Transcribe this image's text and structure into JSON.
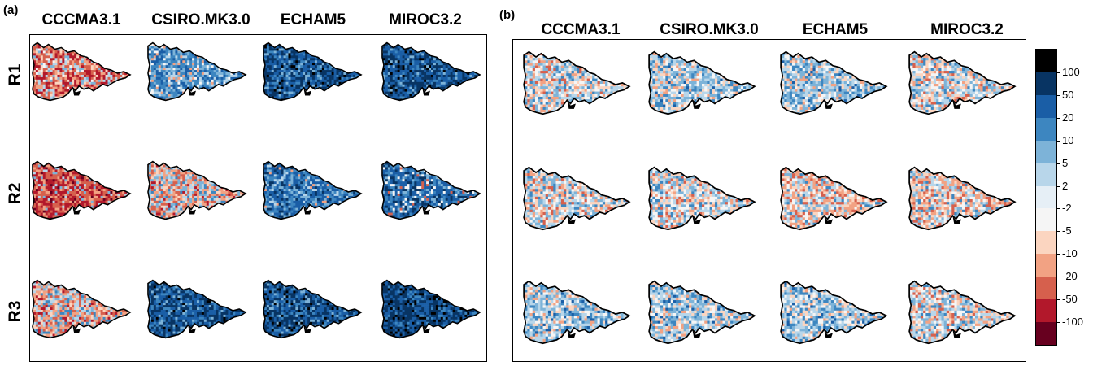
{
  "panels": [
    {
      "letter": "(a)",
      "columns": [
        "CCCMA3.1",
        "CSIRO.MK3.0",
        "ECHAM5",
        "MIROC3.2"
      ],
      "rows": [
        "R1",
        "R2",
        "R3"
      ],
      "maps": [
        [
          "pos_red",
          "pos_blue",
          "dark_blue",
          "dark_blue"
        ],
        [
          "strong_red",
          "mixed_red",
          "blue",
          "blue_mixed"
        ],
        [
          "mixed_red",
          "dark_blue",
          "dark_blue",
          "darkest_blue"
        ]
      ]
    },
    {
      "letter": "(b)",
      "columns": [
        "CCCMA3.1",
        "CSIRO.MK3.0",
        "ECHAM5",
        "MIROC3.2"
      ],
      "rows": [],
      "maps": [
        [
          "light_mix",
          "light_mix_blue",
          "light_mix_blue",
          "light_mix"
        ],
        [
          "light_mix",
          "light_mix",
          "light_mix_red",
          "light_mix_red"
        ],
        [
          "light_mix_blue",
          "light_mix_blue",
          "light_mix_blue",
          "light_mix"
        ]
      ]
    }
  ],
  "legend": {
    "labels": [
      "100",
      "50",
      "20",
      "10",
      "5",
      "2",
      "-2",
      "-5",
      "-10",
      "-20",
      "-50",
      "-100"
    ],
    "colors": [
      "#000000",
      "#083463",
      "#1a5ea6",
      "#3d86c0",
      "#7db3d8",
      "#b8d6ea",
      "#e6eff6",
      "#f5f5f5",
      "#fbd5c0",
      "#f2a283",
      "#d6604d",
      "#b2182b",
      "#67001f"
    ]
  }
}
